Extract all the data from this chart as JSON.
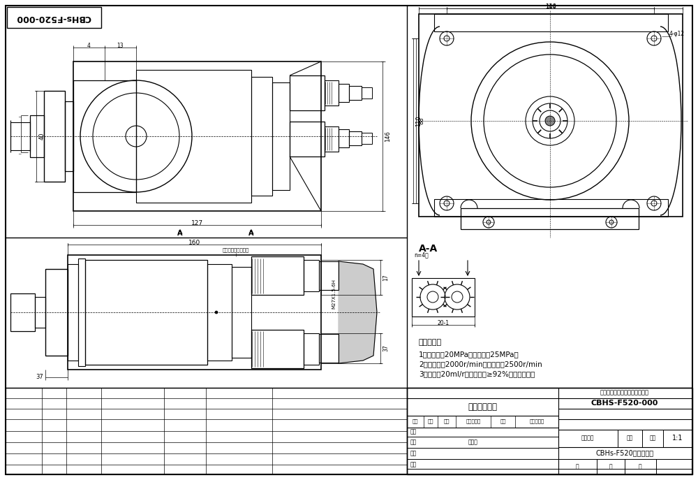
{
  "bg_color": "#ffffff",
  "line_color": "#000000",
  "title_box_text": "CBHS-F520-000",
  "title_rotated": "CBHs-F520-000",
  "company": "青州博信华盛液压科技有限公司",
  "drawing_title": "外连接尺寸图",
  "part_name": "CBHs-F520齿轮泵总成",
  "scale": "1:1",
  "tech_params_title": "技术参数：",
  "tech_param1": "1、预定压力20MPa，最高压力25MPa。",
  "tech_param2": "2、预定转速2000r/min，最高转速2500r/min",
  "tech_param3": "3、排量：20ml/r，容积效率≥92%，旋向：左旋",
  "section_label": "A-A",
  "col_headers": [
    "标记",
    "处数",
    "分区",
    "更改文件号",
    "签名",
    "年、月、日"
  ],
  "design_label": "设计",
  "review_label": "审核",
  "process_label": "工艺",
  "date_label": "标准化",
  "drawing_no_label": "图样标记",
  "weight_label": "重量",
  "ratio_label": "比例",
  "sheet_labels": [
    "共",
    "第",
    "页"
  ],
  "annotation1": "进油口和回油口位置"
}
